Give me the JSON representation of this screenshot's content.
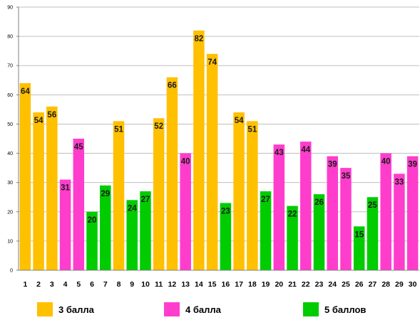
{
  "chart_data": {
    "type": "bar",
    "categories": [
      "1",
      "2",
      "3",
      "4",
      "5",
      "6",
      "7",
      "8",
      "9",
      "10",
      "11",
      "12",
      "13",
      "14",
      "15",
      "16",
      "17",
      "18",
      "19",
      "20",
      "21",
      "22",
      "23",
      "24",
      "25",
      "26",
      "27",
      "28",
      "29",
      "30"
    ],
    "values": [
      64,
      54,
      56,
      31,
      45,
      20,
      29,
      51,
      24,
      27,
      52,
      66,
      40,
      82,
      74,
      23,
      54,
      51,
      27,
      43,
      22,
      44,
      26,
      39,
      35,
      15,
      25,
      40,
      33,
      39
    ],
    "groups": [
      "3 балла",
      "3 балла",
      "3 балла",
      "4 балла",
      "4 балла",
      "5 баллов",
      "5 баллов",
      "3 балла",
      "5 баллов",
      "5 баллов",
      "3 балла",
      "3 балла",
      "4 балла",
      "3 балла",
      "3 балла",
      "5 баллов",
      "3 балла",
      "3 балла",
      "5 баллов",
      "4 балла",
      "5 баллов",
      "4 балла",
      "5 баллов",
      "4 балла",
      "4 балла",
      "5 баллов",
      "5 баллов",
      "4 балла",
      "4 балла",
      "4 балла"
    ],
    "ylim": [
      0,
      90
    ],
    "yticks": [
      0,
      10,
      20,
      30,
      40,
      50,
      60,
      70,
      80,
      90
    ],
    "title": "",
    "xlabel": "",
    "ylabel": "",
    "grid": true,
    "legend_position": "bottom",
    "legend": [
      {
        "name": "3 балла",
        "color": "#FFC000"
      },
      {
        "name": "4 балла",
        "color": "#FF3DCC"
      },
      {
        "name": "5 баллов",
        "color": "#00CC00"
      }
    ]
  }
}
